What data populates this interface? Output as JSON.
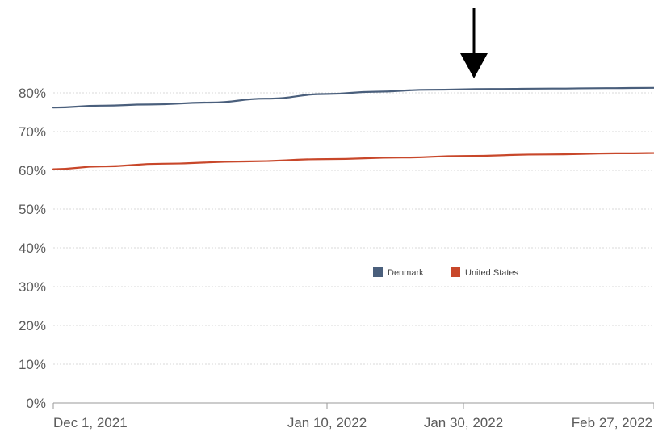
{
  "chart_data": {
    "type": "line",
    "title": "",
    "xlabel": "",
    "ylabel": "",
    "ylim": [
      0,
      80
    ],
    "grid": true,
    "legend_position": "center-right",
    "x_ticks": [
      {
        "date": "2021-12-01",
        "label": "Dec 1, 2021"
      },
      {
        "date": "2022-01-10",
        "label": "Jan 10, 2022"
      },
      {
        "date": "2022-01-30",
        "label": "Jan 30, 2022"
      },
      {
        "date": "2022-02-27",
        "label": "Feb 27, 2022"
      }
    ],
    "y_ticks": [
      {
        "value": 0,
        "label": "0%"
      },
      {
        "value": 10,
        "label": "10%"
      },
      {
        "value": 20,
        "label": "20%"
      },
      {
        "value": 30,
        "label": "30%"
      },
      {
        "value": 40,
        "label": "40%"
      },
      {
        "value": 50,
        "label": "50%"
      },
      {
        "value": 60,
        "label": "60%"
      },
      {
        "value": 70,
        "label": "70%"
      },
      {
        "value": 80,
        "label": "80%"
      }
    ],
    "series": [
      {
        "name": "Denmark",
        "color": "#4a5f7c",
        "points": [
          {
            "x": "2021-12-01",
            "y": 76.2
          },
          {
            "x": "2021-12-08",
            "y": 76.7
          },
          {
            "x": "2021-12-15",
            "y": 77.0
          },
          {
            "x": "2021-12-24",
            "y": 77.5
          },
          {
            "x": "2022-01-01",
            "y": 78.5
          },
          {
            "x": "2022-01-10",
            "y": 79.7
          },
          {
            "x": "2022-01-17",
            "y": 80.3
          },
          {
            "x": "2022-01-25",
            "y": 80.8
          },
          {
            "x": "2022-02-03",
            "y": 81.0
          },
          {
            "x": "2022-02-12",
            "y": 81.1
          },
          {
            "x": "2022-02-20",
            "y": 81.2
          },
          {
            "x": "2022-02-27",
            "y": 81.3
          }
        ]
      },
      {
        "name": "United States",
        "color": "#c8472a",
        "points": [
          {
            "x": "2021-12-01",
            "y": 60.3
          },
          {
            "x": "2021-12-08",
            "y": 61.0
          },
          {
            "x": "2021-12-17",
            "y": 61.7
          },
          {
            "x": "2021-12-29",
            "y": 62.3
          },
          {
            "x": "2022-01-10",
            "y": 62.9
          },
          {
            "x": "2022-01-21",
            "y": 63.3
          },
          {
            "x": "2022-01-30",
            "y": 63.7
          },
          {
            "x": "2022-02-11",
            "y": 64.1
          },
          {
            "x": "2022-02-22",
            "y": 64.4
          },
          {
            "x": "2022-03-02",
            "y": 64.5
          }
        ]
      }
    ],
    "annotations": [
      {
        "type": "arrow-down",
        "x": "2022-01-30",
        "color": "#000000"
      }
    ]
  }
}
